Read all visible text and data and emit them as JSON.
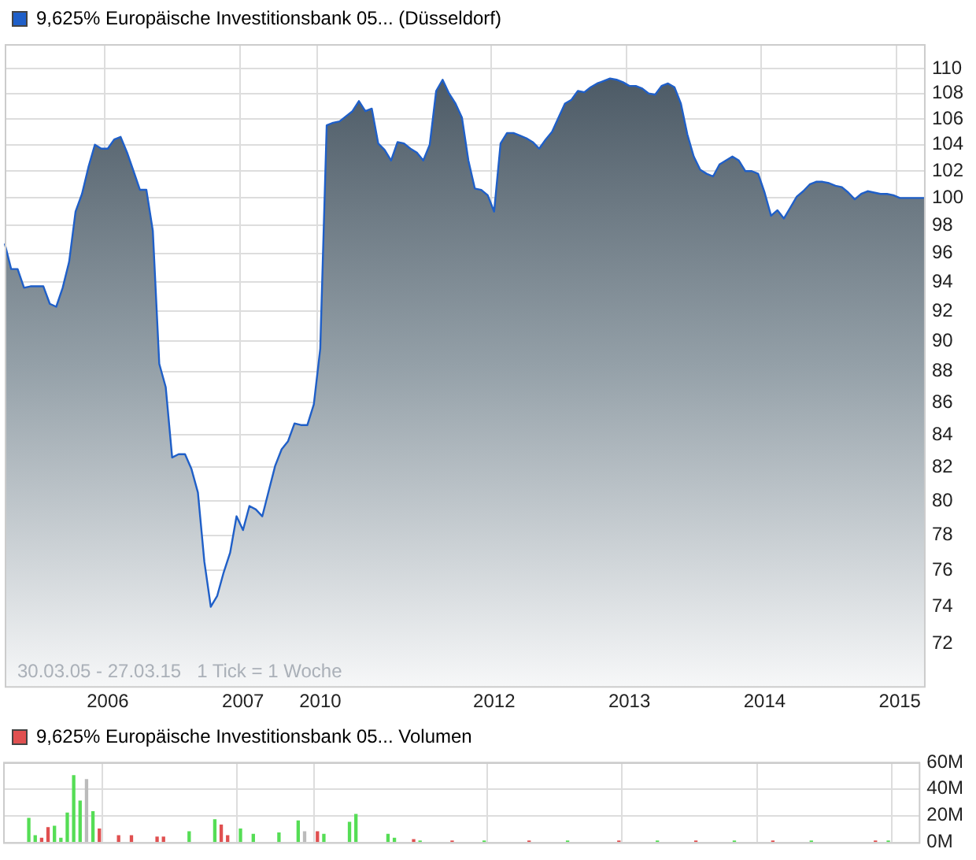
{
  "chart_data": [
    {
      "type": "area",
      "categories": [
        null,
        null,
        null,
        null,
        null,
        null,
        null,
        null,
        null,
        null,
        null,
        null,
        null,
        null,
        null,
        null,
        "2006",
        null,
        null,
        null,
        null,
        null,
        null,
        null,
        null,
        null,
        null,
        null,
        null,
        null,
        null,
        null,
        null,
        null,
        null,
        null,
        null,
        "2007",
        null,
        null,
        null,
        null,
        null,
        null,
        null,
        null,
        null,
        null,
        null,
        "2010",
        null,
        null,
        null,
        null,
        null,
        null,
        null,
        null,
        null,
        null,
        null,
        null,
        null,
        null,
        null,
        null,
        null,
        null,
        null,
        null,
        null,
        null,
        null,
        null,
        null,
        null,
        "2012",
        null,
        null,
        null,
        null,
        null,
        null,
        null,
        null,
        null,
        null,
        null,
        null,
        null,
        null,
        null,
        null,
        null,
        null,
        null,
        null,
        "2013",
        null,
        null,
        null,
        null,
        null,
        null,
        null,
        null,
        null,
        null,
        null,
        null,
        null,
        null,
        null,
        null,
        null,
        null,
        null,
        null,
        "2014",
        null,
        null,
        null,
        null,
        null,
        null,
        null,
        null,
        null,
        null,
        null,
        null,
        null,
        null,
        null,
        null,
        null,
        null,
        null,
        null,
        "2015",
        null,
        null,
        null,
        null
      ],
      "series": [
        {
          "name": "9,625% Europäische Investitionsbank 05... (Düsseldorf)",
          "color": "#1f5fc8",
          "values": [
            96.7,
            94.9,
            94.9,
            93.6,
            93.7,
            93.7,
            93.7,
            92.5,
            92.3,
            93.6,
            95.4,
            99.0,
            100.3,
            102.3,
            104.0,
            103.7,
            103.7,
            104.4,
            104.6,
            103.4,
            102.0,
            100.6,
            100.6,
            97.6,
            88.5,
            87.0,
            82.6,
            82.8,
            82.8,
            81.9,
            80.5,
            76.5,
            74.0,
            74.6,
            75.9,
            77.0,
            79.1,
            78.3,
            79.7,
            79.5,
            79.1,
            80.6,
            82.1,
            83.1,
            83.6,
            84.7,
            84.6,
            84.6,
            85.9,
            89.5,
            105.5,
            105.7,
            105.8,
            106.2,
            106.6,
            107.4,
            106.6,
            106.8,
            104.1,
            103.6,
            102.8,
            104.2,
            104.1,
            103.7,
            103.4,
            102.8,
            104.0,
            108.2,
            109.1,
            108.0,
            107.2,
            106.1,
            102.8,
            100.7,
            100.6,
            100.2,
            99.0,
            104.1,
            104.9,
            104.9,
            104.7,
            104.5,
            104.2,
            103.7,
            104.4,
            105.0,
            106.1,
            107.2,
            107.5,
            108.2,
            108.1,
            108.5,
            108.8,
            109.0,
            109.2,
            109.1,
            108.9,
            108.6,
            108.6,
            108.4,
            108.0,
            107.9,
            108.6,
            108.8,
            108.5,
            107.2,
            104.8,
            103.1,
            102.1,
            101.8,
            101.6,
            102.5,
            102.8,
            103.1,
            102.8,
            102.0,
            102.0,
            101.8,
            100.4,
            98.7,
            99.1,
            98.5,
            99.3,
            100.1,
            100.5,
            101.0,
            101.2,
            101.2,
            101.1,
            100.9,
            100.8,
            100.4,
            99.9,
            100.3,
            100.5,
            100.4,
            100.3,
            100.3,
            100.2,
            100.0,
            100.0,
            100.0,
            100.0,
            100.0
          ]
        }
      ],
      "log": true,
      "ylim": [
        69.8,
        112
      ],
      "yticks": [
        72,
        74,
        76,
        78,
        80,
        82,
        84,
        86,
        88,
        90,
        92,
        94,
        96,
        98,
        100,
        102,
        104,
        106,
        108,
        110
      ],
      "grid": true,
      "legend": "top left",
      "marker": "none",
      "line_style": "solid",
      "annotations": [
        "30.03.05 - 27.03.15   1 Tick = 1 Woche"
      ]
    },
    {
      "type": "bar",
      "categories": [
        null,
        null,
        null,
        null,
        null,
        null,
        null,
        null,
        null,
        null,
        null,
        null,
        null,
        null,
        null,
        null,
        "2006",
        null,
        null,
        null,
        null,
        null,
        null,
        null,
        null,
        null,
        null,
        null,
        null,
        null,
        null,
        null,
        null,
        null,
        null,
        null,
        null,
        "2007",
        null,
        null,
        null,
        null,
        null,
        null,
        null,
        null,
        null,
        null,
        null,
        "2010",
        null,
        null,
        null,
        null,
        null,
        null,
        null,
        null,
        null,
        null,
        null,
        null,
        null,
        null,
        null,
        null,
        null,
        null,
        null,
        null,
        null,
        null,
        null,
        null,
        null,
        null,
        "2012",
        null,
        null,
        null,
        null,
        null,
        null,
        null,
        null,
        null,
        null,
        null,
        null,
        null,
        null,
        null,
        null,
        null,
        null,
        null,
        null,
        "2013",
        null,
        null,
        null,
        null,
        null,
        null,
        null,
        null,
        null,
        null,
        null,
        null,
        null,
        null,
        null,
        null,
        null,
        null,
        null,
        null,
        "2014",
        null,
        null,
        null,
        null,
        null,
        null,
        null,
        null,
        null,
        null,
        null,
        null,
        null,
        null,
        null,
        null,
        null,
        null,
        null,
        null,
        "2015",
        null,
        null,
        null,
        null
      ],
      "series": [
        {
          "name": "9,625% Europäische Investitionsbank 05... Volumen",
          "color": "#e05050",
          "values": [
            null,
            null,
            null,
            null,
            null,
            null,
            3,
            11,
            null,
            null,
            null,
            null,
            null,
            null,
            null,
            10,
            null,
            null,
            5,
            null,
            5,
            null,
            null,
            null,
            4,
            4,
            null,
            null,
            null,
            null,
            null,
            null,
            null,
            null,
            13,
            5,
            null,
            null,
            null,
            null,
            null,
            null,
            null,
            null,
            null,
            null,
            null,
            null,
            null,
            8,
            null,
            null,
            null,
            null,
            null,
            null,
            null,
            null,
            null,
            null,
            null,
            null,
            null,
            null,
            2,
            null,
            null,
            null,
            null,
            null,
            1,
            null,
            null,
            null,
            null,
            null,
            null,
            null,
            null,
            null,
            null,
            null,
            1,
            null,
            null,
            null,
            null,
            null,
            null,
            null,
            null,
            null,
            null,
            null,
            null,
            null,
            1,
            null,
            null,
            null,
            null,
            null,
            null,
            null,
            null,
            null,
            null,
            null,
            1,
            null,
            null,
            null,
            null,
            null,
            null,
            null,
            null,
            null,
            null,
            null,
            1,
            null,
            null,
            null,
            null,
            null,
            null,
            null,
            null,
            null,
            null,
            null,
            null,
            null,
            null,
            null,
            1,
            null,
            null,
            null,
            null,
            null,
            null,
            null
          ]
        },
        {
          "color": "#55dd55",
          "values": [
            null,
            null,
            null,
            null,
            18,
            5,
            null,
            null,
            12,
            3,
            22,
            50,
            31,
            null,
            23,
            null,
            null,
            null,
            null,
            null,
            null,
            null,
            null,
            null,
            null,
            null,
            null,
            null,
            null,
            8,
            null,
            null,
            null,
            17,
            null,
            null,
            null,
            10,
            null,
            6,
            null,
            null,
            null,
            7,
            null,
            null,
            16,
            null,
            null,
            null,
            6,
            null,
            null,
            null,
            15,
            21,
            null,
            null,
            null,
            null,
            6,
            3,
            null,
            null,
            null,
            1,
            null,
            null,
            null,
            null,
            null,
            null,
            null,
            null,
            null,
            1,
            null,
            null,
            null,
            null,
            null,
            null,
            null,
            null,
            null,
            null,
            null,
            null,
            1,
            null,
            null,
            null,
            null,
            null,
            null,
            null,
            null,
            null,
            null,
            null,
            null,
            null,
            1,
            null,
            null,
            null,
            null,
            null,
            null,
            null,
            null,
            null,
            null,
            null,
            1,
            null,
            null,
            null,
            null,
            null,
            null,
            null,
            null,
            null,
            null,
            null,
            1,
            null,
            null,
            null,
            null,
            null,
            null,
            null,
            null,
            null,
            null,
            null,
            1,
            null,
            null,
            null,
            null,
            null
          ]
        },
        {
          "color": "#bbbbbb",
          "values": [
            null,
            null,
            null,
            null,
            null,
            null,
            null,
            null,
            null,
            null,
            null,
            null,
            null,
            47,
            null,
            null,
            null,
            null,
            null,
            null,
            null,
            null,
            null,
            null,
            null,
            null,
            null,
            null,
            null,
            null,
            null,
            null,
            null,
            null,
            null,
            null,
            null,
            null,
            null,
            null,
            null,
            null,
            null,
            null,
            null,
            null,
            null,
            8,
            null,
            null,
            null,
            null,
            null,
            null,
            null,
            null,
            null,
            null,
            null,
            null,
            null,
            null,
            null,
            null,
            null,
            null,
            null,
            null,
            null,
            null,
            null,
            null,
            null,
            null,
            null,
            null,
            null,
            null,
            null,
            null,
            null,
            null,
            null,
            null,
            null,
            null,
            null,
            null,
            null,
            null,
            null,
            null,
            null,
            null,
            null,
            null,
            null,
            null,
            null,
            null,
            null,
            null,
            null,
            null,
            null,
            null,
            null,
            null,
            null,
            null,
            null,
            null,
            null,
            null,
            null,
            null,
            null,
            null,
            null,
            null,
            null,
            null,
            null,
            null,
            null,
            null,
            null,
            null,
            null,
            null,
            null,
            null,
            null,
            null,
            null,
            null,
            null,
            null,
            null,
            null,
            null,
            null,
            null,
            null
          ]
        }
      ],
      "ylim": [
        0,
        60
      ],
      "yticks": [
        {
          "value": 0,
          "label": "0M"
        },
        {
          "value": 20,
          "label": "20M"
        },
        {
          "value": 40,
          "label": "40M"
        },
        {
          "value": 60,
          "label": "60M"
        }
      ],
      "grid": true,
      "legend": "top left",
      "tick_labels": "y"
    }
  ]
}
